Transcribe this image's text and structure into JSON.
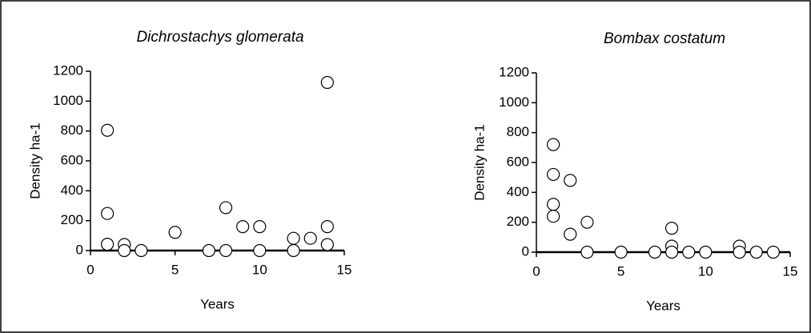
{
  "chart_data": [
    {
      "type": "scatter",
      "title": "Dichrostachys glomerata",
      "x_label": "Years",
      "y_label": "Density ha-1",
      "x": [
        1,
        1,
        1,
        2,
        2,
        3,
        5,
        7,
        8,
        8,
        9,
        10,
        10,
        12,
        12,
        13,
        14,
        14,
        14
      ],
      "values": [
        805,
        248,
        42,
        40,
        0,
        0,
        122,
        0,
        287,
        0,
        160,
        160,
        0,
        82,
        0,
        82,
        1125,
        160,
        40
      ],
      "xlim": [
        0,
        15
      ],
      "ylim": [
        0,
        1200
      ],
      "xticks": [
        0,
        5,
        10,
        15
      ],
      "yticks": [
        0,
        200,
        400,
        600,
        800,
        1000,
        1200
      ],
      "color": "#ffffff"
    },
    {
      "type": "scatter",
      "title": "Bombax costatum",
      "x_label": "Years",
      "y_label": "Density ha-1",
      "x": [
        1,
        1,
        1,
        1,
        2,
        2,
        3,
        3,
        5,
        7,
        8,
        8,
        8,
        9,
        10,
        12,
        12,
        13,
        14
      ],
      "values": [
        720,
        520,
        320,
        240,
        480,
        120,
        200,
        0,
        0,
        0,
        160,
        40,
        0,
        0,
        0,
        40,
        0,
        0,
        0
      ],
      "xlim": [
        0,
        15
      ],
      "ylim": [
        0,
        1200
      ],
      "xticks": [
        0,
        5,
        10,
        15
      ],
      "yticks": [
        0,
        200,
        400,
        600,
        800,
        1000,
        1200
      ],
      "color": "#ffffff"
    }
  ]
}
